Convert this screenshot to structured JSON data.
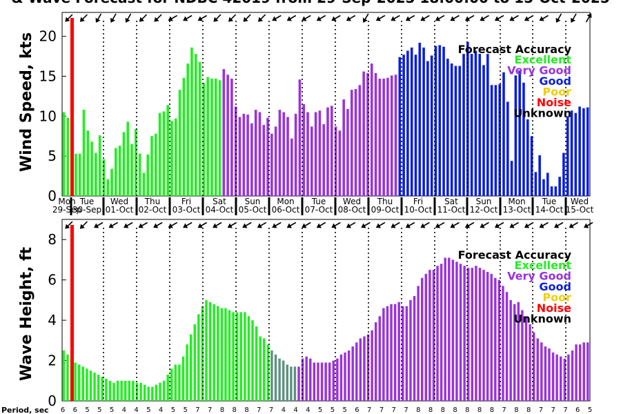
{
  "title": "& Wave Forecast for NDBC 42019 from 29-Sep-2025 18:00:00 to 15-Oct-2025",
  "colors": {
    "excellent": "#22ee22",
    "very_good": "#9933dd",
    "good": "#0a1ee0",
    "poor": "#f5cc00",
    "noise": "#ff0000",
    "unknown": "#000000",
    "transition": "#5f9080"
  },
  "legend": {
    "title": "Forecast Accuracy",
    "items": [
      {
        "label": "Excellent",
        "color": "#22ee22"
      },
      {
        "label": "Very Good",
        "color": "#9933dd"
      },
      {
        "label": "Good",
        "color": "#0a1ee0"
      },
      {
        "label": "Poor",
        "color": "#f5cc00"
      },
      {
        "label": "Noise",
        "color": "#ff0000"
      },
      {
        "label": "Unknown",
        "color": "#000000"
      }
    ]
  },
  "chart_data": [
    {
      "type": "bar",
      "ylabel": "Wind Speed, kts",
      "ylim": [
        0,
        23
      ],
      "yticks": [
        0,
        5,
        10,
        15,
        20
      ],
      "day_labels": [
        "Mon",
        "Tue",
        "Wed",
        "Thu",
        "Fri",
        "Sat",
        "Sun",
        "Mon",
        "Tue",
        "Wed",
        "Thu",
        "Fri",
        "Sat",
        "Sun",
        "Mon",
        "Tue",
        "Wed"
      ],
      "date_labels": [
        "29-Sep",
        "30-Sep",
        "01-Oct",
        "02-Oct",
        "03-Oct",
        "04-Oct",
        "05-Oct",
        "06-Oct",
        "07-Oct",
        "08-Oct",
        "09-Oct",
        "10-Oct",
        "11-Oct",
        "12-Oct",
        "13-Oct",
        "14-Oct",
        "15-Oct"
      ],
      "values": [
        10.5,
        9.8,
        9.5,
        5.3,
        5.3,
        10.8,
        8.2,
        6.8,
        5.4,
        7.6,
        4.6,
        2.1,
        3.4,
        6,
        6.3,
        8,
        9.3,
        6.5,
        8.4,
        5.3,
        2.9,
        5.2,
        7.5,
        7.8,
        10.4,
        10.6,
        11.4,
        9.4,
        9.7,
        13.3,
        14.8,
        16.6,
        18.6,
        17.8,
        16.8,
        14.2,
        14.9,
        14.7,
        14.7,
        14.5,
        15.9,
        15.2,
        14.7,
        11.2,
        9.9,
        10.3,
        10.2,
        9.1,
        10.8,
        10.5,
        8.9,
        9.8,
        7.8,
        8.7,
        10.8,
        10.5,
        9.9,
        7.2,
        10.3,
        14.6,
        11.5,
        10.5,
        8.7,
        10.5,
        10.7,
        9,
        11.1,
        11.3,
        8.7,
        8.2,
        12.1,
        10.9,
        13.3,
        13.4,
        13.9,
        15.6,
        15.4,
        16.6,
        15.4,
        14.7,
        14.7,
        14.8,
        15.1,
        15.2,
        17.4,
        17.7,
        18.2,
        18.6,
        17.7,
        19.2,
        18.6,
        16.9,
        17.6,
        18.8,
        18.9,
        18.7,
        17.2,
        16.6,
        16.3,
        16.3,
        17.8,
        19.3,
        17.8,
        18.2,
        17.8,
        16.4,
        17.8,
        13.9,
        13.9,
        14,
        15.5,
        11.8,
        4.4,
        15.1,
        15.6,
        14.2,
        9.6,
        7.5,
        3,
        5.1,
        2.1,
        2.9,
        1.2,
        1.2,
        2.4,
        5.4,
        10,
        10.7,
        10.4,
        11.2,
        11,
        11.1
      ],
      "quality": [
        "E",
        "E",
        "E",
        "E",
        "E",
        "E",
        "E",
        "E",
        "E",
        "E",
        "E",
        "E",
        "E",
        "E",
        "E",
        "E",
        "E",
        "E",
        "E",
        "E",
        "E",
        "E",
        "E",
        "E",
        "E",
        "E",
        "E",
        "E",
        "E",
        "E",
        "E",
        "E",
        "E",
        "E",
        "E",
        "E",
        "E",
        "E",
        "E",
        "E",
        "V",
        "V",
        "V",
        "V",
        "V",
        "V",
        "V",
        "V",
        "V",
        "V",
        "V",
        "V",
        "V",
        "V",
        "V",
        "V",
        "V",
        "V",
        "V",
        "V",
        "V",
        "V",
        "V",
        "V",
        "V",
        "V",
        "V",
        "V",
        "V",
        "V",
        "V",
        "V",
        "V",
        "V",
        "V",
        "V",
        "V",
        "V",
        "V",
        "V",
        "V",
        "V",
        "V",
        "V",
        "G",
        "G",
        "G",
        "G",
        "G",
        "G",
        "G",
        "G",
        "G",
        "G",
        "G",
        "G",
        "G",
        "G",
        "G",
        "G",
        "G",
        "G",
        "G",
        "G",
        "G",
        "G",
        "G",
        "G",
        "G",
        "G",
        "G",
        "G",
        "G",
        "G",
        "G",
        "G",
        "G",
        "G",
        "G",
        "G",
        "G",
        "G",
        "G",
        "G",
        "G",
        "G",
        "G",
        "G",
        "G",
        "G",
        "G",
        "G"
      ],
      "wind_dirs_deg": [
        225,
        225,
        225,
        225,
        225,
        225,
        225,
        225,
        225,
        225,
        225,
        225,
        225,
        225,
        225,
        225,
        225,
        225,
        225,
        225,
        225,
        225,
        225,
        225,
        225,
        225,
        225,
        225,
        225,
        225,
        225,
        225,
        225,
        225,
        225,
        225,
        225,
        225,
        225,
        225,
        225,
        225,
        225,
        225,
        225,
        225,
        225,
        225,
        225,
        225,
        225,
        225,
        225,
        225,
        225,
        225,
        225,
        225,
        225,
        225,
        225,
        225,
        225,
        225,
        225,
        225,
        225,
        225,
        225,
        225,
        225,
        225,
        225,
        225,
        225,
        225,
        225,
        225,
        225,
        225,
        225,
        225,
        225,
        225,
        240,
        240,
        240,
        240,
        240,
        240,
        240,
        240,
        240,
        240,
        240,
        240,
        240,
        240,
        240,
        240,
        240,
        240,
        240,
        240,
        240,
        240,
        240,
        240,
        240,
        240,
        240,
        240,
        240,
        240,
        240,
        240,
        240,
        240,
        240,
        240,
        240,
        240,
        240,
        240,
        240,
        240,
        240,
        240,
        240,
        240,
        240,
        240
      ],
      "arrow_dirs_deg": [
        225,
        225,
        210,
        210,
        210,
        225,
        225,
        240,
        240,
        240,
        225,
        225,
        225,
        225,
        240,
        240,
        240,
        240,
        240,
        240,
        210,
        240,
        240,
        240,
        240,
        240,
        240,
        240,
        240,
        240,
        240,
        240,
        240,
        210,
        210,
        30
      ]
    },
    {
      "type": "bar",
      "ylabel": "Wave Height, ft",
      "ylim": [
        0,
        9
      ],
      "yticks": [
        0,
        2,
        4,
        6,
        8
      ],
      "values": [
        2.5,
        2.3,
        2.1,
        1.9,
        1.8,
        1.7,
        1.6,
        1.5,
        1.4,
        1.3,
        1.2,
        1.1,
        1,
        0.9,
        1,
        1,
        1,
        1,
        1,
        0.9,
        0.9,
        0.8,
        0.7,
        0.7,
        0.8,
        0.9,
        1,
        1.3,
        1.6,
        1.8,
        1.8,
        2.2,
        2.8,
        3.3,
        3.8,
        4.3,
        4.7,
        5,
        4.9,
        4.8,
        4.7,
        4.6,
        4.6,
        4.5,
        4.4,
        4.4,
        4.4,
        4.4,
        4.2,
        4,
        3.7,
        3.2,
        3.1,
        2.8,
        2.5,
        2.3,
        2.1,
        2.0,
        1.8,
        1.7,
        1.7,
        1.7,
        2.1,
        2.2,
        2.1,
        1.9,
        1.9,
        1.9,
        1.9,
        1.9,
        2,
        2.1,
        2.3,
        2.4,
        2.5,
        2.7,
        2.9,
        3.1,
        3.2,
        3.3,
        3.5,
        3.9,
        4.2,
        4.6,
        4.7,
        4.8,
        4.8,
        4.9,
        4.7,
        4.7,
        5,
        5.2,
        5.7,
        6.1,
        6.3,
        6.5,
        6.5,
        6.7,
        6.8,
        7.1,
        7.1,
        7,
        6.9,
        6.8,
        6.7,
        6.6,
        6.6,
        6.7,
        6.6,
        6.5,
        6.4,
        6.3,
        6.1,
        6,
        5.7,
        5.4,
        5,
        4.8,
        4.9,
        4.5,
        4.2,
        3.8,
        3.4,
        3.1,
        2.9,
        2.7,
        2.6,
        2.4,
        2.3,
        2.2,
        2.1,
        2.3,
        2.5,
        2.8,
        2.8,
        2.9,
        2.9
      ],
      "quality": [
        "E",
        "E",
        "E",
        "E",
        "E",
        "E",
        "E",
        "E",
        "E",
        "E",
        "E",
        "E",
        "E",
        "E",
        "E",
        "E",
        "E",
        "E",
        "E",
        "E",
        "E",
        "E",
        "E",
        "E",
        "E",
        "E",
        "E",
        "E",
        "E",
        "E",
        "E",
        "E",
        "E",
        "E",
        "E",
        "E",
        "E",
        "E",
        "E",
        "E",
        "E",
        "E",
        "E",
        "E",
        "E",
        "E",
        "E",
        "E",
        "E",
        "E",
        "E",
        "E",
        "E",
        "E",
        "T",
        "T",
        "T",
        "T",
        "T",
        "T",
        "T",
        "V",
        "V",
        "V",
        "V",
        "V",
        "V",
        "V",
        "V",
        "V",
        "V",
        "V",
        "V",
        "V",
        "V",
        "V",
        "V",
        "V",
        "V",
        "V",
        "V",
        "V",
        "V",
        "V",
        "V",
        "V",
        "V",
        "V",
        "V",
        "V",
        "V",
        "V",
        "V",
        "V",
        "V",
        "V",
        "V",
        "V",
        "V",
        "V",
        "V",
        "V",
        "V",
        "V",
        "V",
        "V",
        "V",
        "V",
        "V",
        "V",
        "V",
        "V",
        "V",
        "V",
        "V",
        "V",
        "V",
        "V",
        "V",
        "V",
        "V",
        "V",
        "V",
        "V",
        "V",
        "V",
        "V",
        "V",
        "V",
        "V",
        "V",
        "V",
        "V",
        "V",
        "V",
        "V",
        "V",
        "V",
        "V",
        "V"
      ],
      "wave_arrow_dirs_deg": [
        225,
        225,
        240,
        240,
        240,
        240,
        240,
        240,
        240,
        240,
        240,
        240,
        240,
        240,
        240,
        240,
        240,
        240,
        240,
        240,
        240,
        240,
        240,
        240,
        240,
        240,
        240,
        240,
        240,
        240,
        240,
        240,
        240,
        240,
        240,
        240
      ]
    }
  ],
  "period": {
    "label": "Period, sec",
    "values": [
      "6",
      "6",
      "5",
      "5",
      "5",
      "4",
      "4",
      "5",
      "4",
      "5",
      "5",
      "7",
      "7",
      "8",
      "8",
      "8",
      "7",
      "7",
      "4",
      "4",
      "4",
      "5",
      "5",
      "5",
      "6",
      "7",
      "7",
      "7",
      "7",
      "8",
      "8",
      "8",
      "8",
      "8",
      "8",
      "8",
      "7",
      "8",
      "8",
      "7",
      "7",
      "7",
      "6",
      "5"
    ]
  }
}
